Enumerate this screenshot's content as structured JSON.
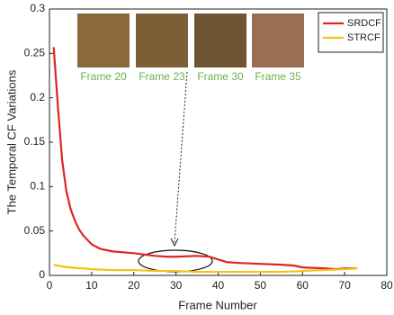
{
  "chart_data": {
    "type": "line",
    "xlabel": "Frame Number",
    "ylabel": "The Temporal CF Variations",
    "x": [
      1,
      2,
      3,
      4,
      5,
      6,
      7,
      8,
      9,
      10,
      12,
      15,
      20,
      25,
      28,
      30,
      35,
      38,
      40,
      42,
      45,
      50,
      55,
      58,
      60,
      65,
      68,
      70,
      73
    ],
    "series": [
      {
        "name": "SRDCF",
        "color": "#e02424",
        "values": [
          0.257,
          0.19,
          0.13,
          0.095,
          0.075,
          0.062,
          0.052,
          0.045,
          0.04,
          0.035,
          0.03,
          0.027,
          0.025,
          0.022,
          0.021,
          0.021,
          0.022,
          0.021,
          0.018,
          0.015,
          0.014,
          0.013,
          0.012,
          0.011,
          0.009,
          0.008,
          0.007,
          0.008,
          0.008
        ]
      },
      {
        "name": "STRCF",
        "color": "#f2c314",
        "values": [
          0.012,
          0.011,
          0.01,
          0.0095,
          0.009,
          0.0085,
          0.008,
          0.008,
          0.0075,
          0.007,
          0.0065,
          0.006,
          0.006,
          0.005,
          0.005,
          0.005,
          0.004,
          0.004,
          0.004,
          0.004,
          0.004,
          0.004,
          0.004,
          0.0045,
          0.005,
          0.006,
          0.0065,
          0.007,
          0.008
        ]
      }
    ],
    "xlim": [
      0,
      80
    ],
    "xticks": [
      0,
      10,
      20,
      30,
      40,
      50,
      60,
      70,
      80
    ],
    "ylim": [
      0,
      0.3
    ],
    "yticks": [
      0,
      0.05,
      0.1,
      0.15,
      0.2,
      0.25,
      0.3
    ],
    "legend": "upper right",
    "annotations": [
      "Frame 20",
      "Frame 23",
      "Frame 30",
      "Frame 35"
    ]
  }
}
